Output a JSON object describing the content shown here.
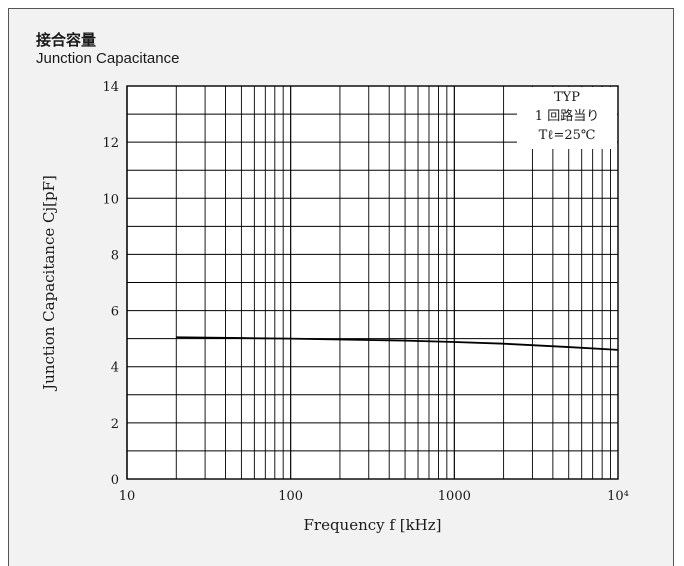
{
  "header": {
    "title_jp": "接合容量",
    "title_en": "Junction Capacitance"
  },
  "annotation": {
    "lines": [
      "TYP",
      "1 回路当り",
      "Tℓ=25℃"
    ]
  },
  "colors": {
    "panel_background": "#f2f2f2",
    "plot_background": "#ffffff",
    "grid": "#000000",
    "curve": "#000000"
  },
  "chart_data": {
    "type": "line",
    "title": "Junction Capacitance",
    "xlabel": "Frequency f [kHz]",
    "ylabel": "Junction Capacitance Cj[pF]",
    "x_scale": "log",
    "xlim": [
      10,
      10000
    ],
    "ylim": [
      0,
      14
    ],
    "x_ticks": [
      10,
      100,
      1000,
      10000
    ],
    "x_tick_labels": [
      "10",
      "100",
      "1000",
      "10⁴"
    ],
    "y_ticks": [
      0,
      2,
      4,
      6,
      8,
      10,
      12,
      14
    ],
    "y_tick_labels": [
      "0",
      "2",
      "4",
      "6",
      "8",
      "10",
      "12",
      "14"
    ],
    "grid": true,
    "series": [
      {
        "x": [
          20,
          50,
          100,
          200,
          500,
          1000,
          2000,
          5000,
          10000
        ],
        "y": [
          5.05,
          5.02,
          5.0,
          4.97,
          4.93,
          4.88,
          4.82,
          4.7,
          4.6
        ]
      }
    ]
  }
}
